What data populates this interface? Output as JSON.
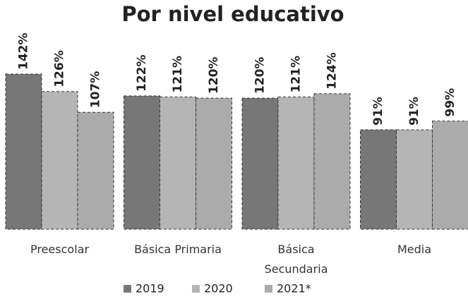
{
  "chart_data": {
    "type": "bar",
    "title": "Por nivel educativo",
    "categories": [
      "Preescolar",
      "Básica Primaria",
      "Básica Secundaria",
      "Media"
    ],
    "series": [
      {
        "name": "2019",
        "color": "#777777",
        "values": [
          142,
          122,
          120,
          91
        ],
        "value_labels": [
          "142%",
          "122%",
          "120%",
          "91%"
        ]
      },
      {
        "name": "2020",
        "color": "#b5b5b5",
        "values": [
          126,
          121,
          121,
          91
        ],
        "value_labels": [
          "126%",
          "121%",
          "121%",
          "91%"
        ]
      },
      {
        "name": "2021*",
        "color": "#ababab",
        "values": [
          107,
          120,
          124,
          99
        ],
        "value_labels": [
          "107%",
          "120%",
          "124%",
          "99%"
        ]
      }
    ],
    "legend": "bottom"
  }
}
